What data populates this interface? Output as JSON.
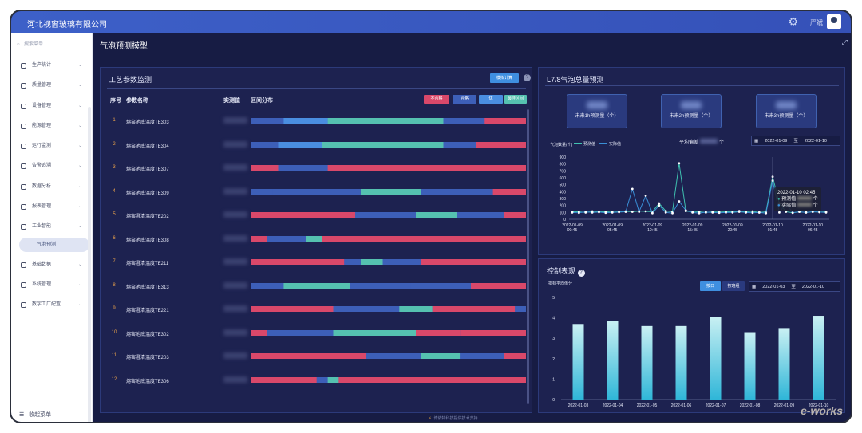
{
  "header": {
    "company": "河北视窗玻璃有限公司",
    "user": "严斌"
  },
  "sidebar": {
    "search_placeholder": "搜索菜单",
    "items": [
      {
        "label": "生产统计"
      },
      {
        "label": "质量管理"
      },
      {
        "label": "设备管理"
      },
      {
        "label": "能源管理"
      },
      {
        "label": "运行监测"
      },
      {
        "label": "告警追溯"
      },
      {
        "label": "数据分析"
      },
      {
        "label": "报表管理"
      },
      {
        "label": "工业智能"
      }
    ],
    "sub_item": "气泡预测",
    "items_after": [
      {
        "label": "基础数据"
      },
      {
        "label": "系统管理"
      },
      {
        "label": "数字工厂配置"
      }
    ],
    "collapse": "收起菜单"
  },
  "page_title": "气泡预测模型",
  "process_panel": {
    "title": "工艺参数监测",
    "simulate_btn": "模拟计算",
    "col_no": "序号",
    "col_name": "参数名称",
    "col_value": "实测值",
    "col_dist": "区间分布",
    "legend": [
      "不合格",
      "合格",
      "优",
      "最佳区间"
    ],
    "legend_colors": [
      "#d9486a",
      "#3d5fb8",
      "#4a8ee0",
      "#55c1b0"
    ],
    "rows": [
      {
        "no": "1",
        "name": "熔窑池底温度TE303"
      },
      {
        "no": "2",
        "name": "熔窑池底温度TE304"
      },
      {
        "no": "3",
        "name": "熔窑池底温度TE307"
      },
      {
        "no": "4",
        "name": "熔窑池底温度TE309"
      },
      {
        "no": "5",
        "name": "熔窑澄清温度TE202"
      },
      {
        "no": "6",
        "name": "熔窑池底温度TE308"
      },
      {
        "no": "7",
        "name": "熔窑澄清温度TE211"
      },
      {
        "no": "8",
        "name": "熔窑池底温度TE313"
      },
      {
        "no": "9",
        "name": "熔窑澄清温度TE221"
      },
      {
        "no": "10",
        "name": "熔窑池底温度TE302"
      },
      {
        "no": "11",
        "name": "熔窑澄清温度TE203"
      },
      {
        "no": "12",
        "name": "熔窑池底温度TE306"
      }
    ]
  },
  "forecast_panel": {
    "title": "L7/8气泡总量预测",
    "kpis": [
      "未来1h预测量（个）",
      "未来2h预测量（个）",
      "未来3h预测量（个）"
    ],
    "avg_label": "平均偏差",
    "avg_unit": "个",
    "date_from": "2022-01-09",
    "date_sep": "至",
    "date_to": "2022-01-10",
    "tooltip": {
      "time": "2022-01-10 02:45",
      "pred": "预测值",
      "actual": "实际值",
      "unit": "个"
    }
  },
  "control_panel": {
    "title": "控制表现",
    "tab_day": "按日",
    "tab_shift": "按班组",
    "date_from": "2022-01-03",
    "date_sep": "至",
    "date_to": "2022-01-10"
  },
  "footer": "博依特科技提供技术支持",
  "watermark": "e-works",
  "chart_data": [
    {
      "type": "line",
      "ylabel": "气泡数量(个)",
      "ylim": [
        0,
        900
      ],
      "yticks": [
        0,
        100,
        200,
        300,
        400,
        500,
        600,
        700,
        800,
        900
      ],
      "x_ticks": [
        "2022-01-09 00:45",
        "2022-01-09 05:45",
        "2022-01-09 10:45",
        "2022-01-09 15:45",
        "2022-01-09 20:45",
        "2022-01-10 01:45",
        "2022-01-10 06:45"
      ],
      "legend": "top-left",
      "series": [
        {
          "name": "预测值",
          "color": "#3fc1b0",
          "values": [
            110,
            110,
            100,
            115,
            110,
            110,
            105,
            110,
            115,
            110,
            120,
            115,
            110,
            230,
            120,
            110,
            810,
            120,
            105,
            110,
            100,
            110,
            105,
            110,
            110,
            120,
            110,
            115,
            100,
            110,
            615,
            230,
            110,
            95,
            110,
            100,
            110,
            105,
            110
          ]
        },
        {
          "name": "实际值",
          "color": "#3a8fd6",
          "values": [
            100,
            95,
            110,
            100,
            105,
            95,
            100,
            105,
            110,
            440,
            110,
            340,
            90,
            200,
            100,
            90,
            260,
            130,
            100,
            90,
            105,
            100,
            95,
            100,
            100,
            110,
            100,
            95,
            100,
            90,
            560,
            100,
            230,
            95,
            110,
            100,
            110,
            105,
            100
          ]
        }
      ]
    },
    {
      "type": "bar",
      "ylabel": "指标平均值分",
      "ylim": [
        0,
        5
      ],
      "yticks": [
        0,
        1,
        2,
        3,
        4,
        5
      ],
      "categories": [
        "2022-01-03",
        "2022-01-04",
        "2022-01-05",
        "2022-01-06",
        "2022-01-07",
        "2022-01-08",
        "2022-01-09",
        "2022-01-10"
      ],
      "values": [
        3.7,
        3.85,
        3.6,
        3.6,
        4.05,
        3.3,
        3.5,
        4.1
      ]
    }
  ]
}
